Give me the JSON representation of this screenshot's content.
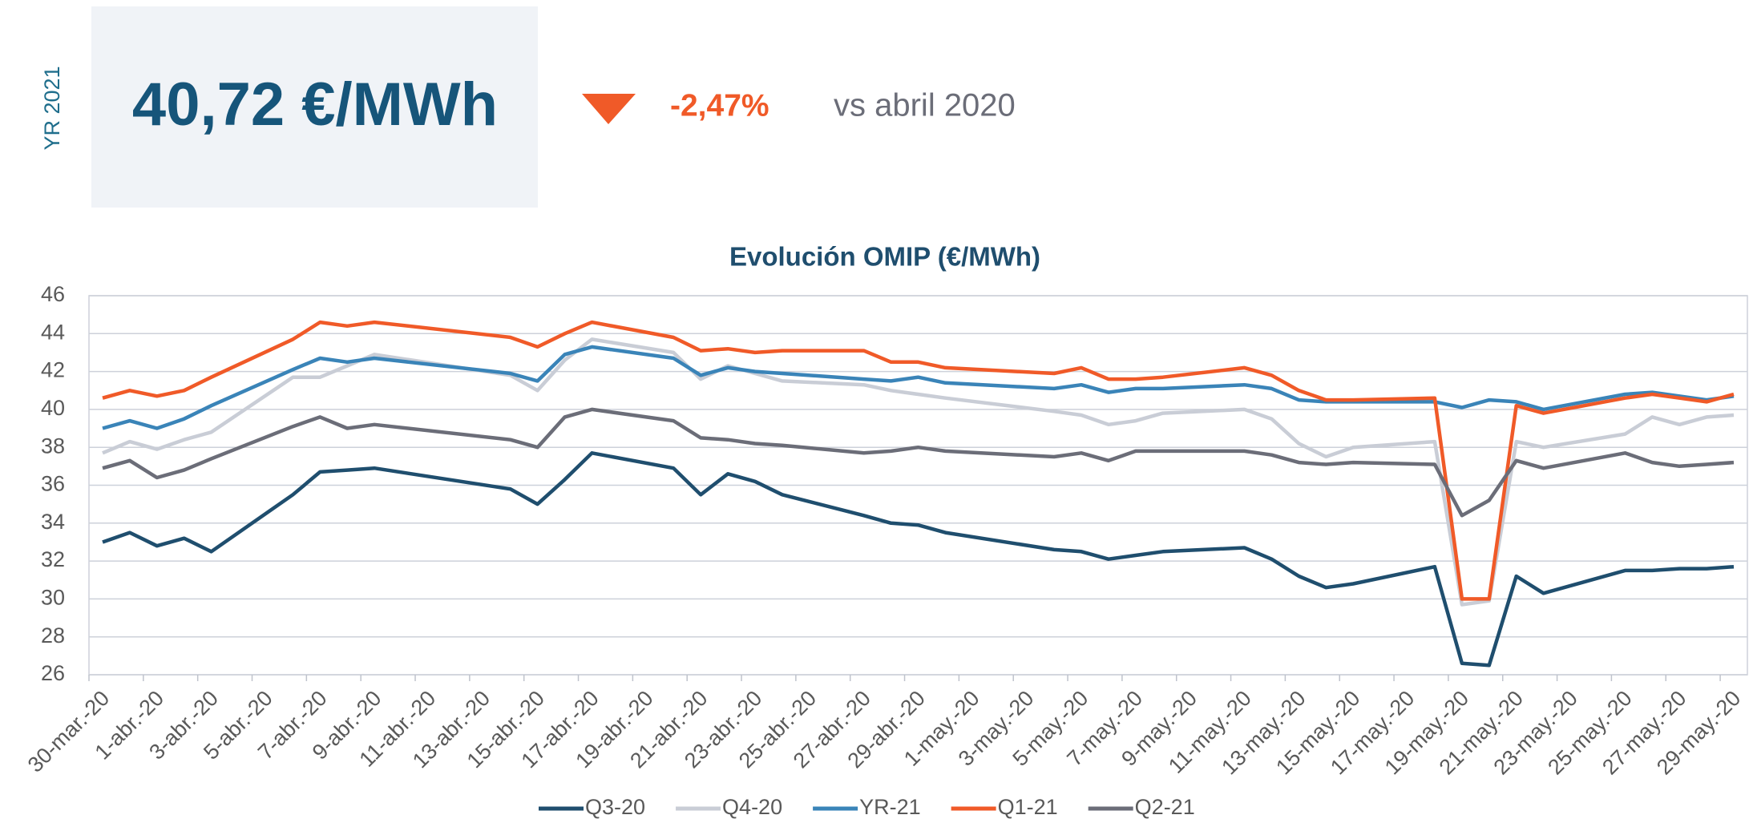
{
  "kpi": {
    "label": "YR 2021",
    "value": "40,72 €/MWh",
    "change": "-2,47%",
    "comparison": "vs abril 2020"
  },
  "chart_data": {
    "type": "line",
    "title": "Evolución OMIP  (€/MWh)",
    "x": [
      "2020-03-30",
      "2020-03-31",
      "2020-04-01",
      "2020-04-02",
      "2020-04-03",
      "2020-04-06",
      "2020-04-07",
      "2020-04-08",
      "2020-04-09",
      "2020-04-14",
      "2020-04-15",
      "2020-04-16",
      "2020-04-17",
      "2020-04-20",
      "2020-04-21",
      "2020-04-22",
      "2020-04-23",
      "2020-04-24",
      "2020-04-27",
      "2020-04-28",
      "2020-04-29",
      "2020-04-30",
      "2020-05-04",
      "2020-05-05",
      "2020-05-06",
      "2020-05-07",
      "2020-05-08",
      "2020-05-11",
      "2020-05-12",
      "2020-05-13",
      "2020-05-14",
      "2020-05-15",
      "2020-05-18",
      "2020-05-19",
      "2020-05-20",
      "2020-05-21",
      "2020-05-22",
      "2020-05-25",
      "2020-05-26",
      "2020-05-27",
      "2020-05-28",
      "2020-05-29"
    ],
    "series": [
      {
        "name": "Q3-20",
        "color": "#1f4e6e",
        "values": [
          33.0,
          33.5,
          32.8,
          33.2,
          32.5,
          35.5,
          36.7,
          36.8,
          36.9,
          35.8,
          35.0,
          36.3,
          37.7,
          36.9,
          35.5,
          36.6,
          36.2,
          35.5,
          34.4,
          34.0,
          33.9,
          33.5,
          32.6,
          32.5,
          32.1,
          32.3,
          32.5,
          32.7,
          32.1,
          31.2,
          30.6,
          30.8,
          31.7,
          26.6,
          26.5,
          31.2,
          30.3,
          31.5,
          31.5,
          31.6,
          31.6,
          31.7
        ]
      },
      {
        "name": "Q4-20",
        "color": "#c9cdd6",
        "values": [
          37.7,
          38.3,
          37.9,
          38.4,
          38.8,
          41.7,
          41.7,
          42.3,
          42.9,
          41.8,
          41.0,
          42.6,
          43.7,
          43.0,
          41.6,
          42.3,
          41.9,
          41.5,
          41.3,
          41.0,
          40.8,
          40.6,
          39.9,
          39.7,
          39.2,
          39.4,
          39.8,
          40.0,
          39.5,
          38.2,
          37.5,
          38.0,
          38.3,
          29.7,
          29.9,
          38.3,
          38.0,
          38.7,
          39.6,
          39.2,
          39.6,
          39.7
        ]
      },
      {
        "name": "YR-21",
        "color": "#3a84b8",
        "values": [
          39.0,
          39.4,
          39.0,
          39.5,
          40.2,
          42.1,
          42.7,
          42.5,
          42.7,
          41.9,
          41.5,
          42.9,
          43.3,
          42.7,
          41.8,
          42.2,
          42.0,
          41.9,
          41.6,
          41.5,
          41.7,
          41.4,
          41.1,
          41.3,
          40.9,
          41.1,
          41.1,
          41.3,
          41.1,
          40.5,
          40.4,
          40.4,
          40.4,
          40.1,
          40.5,
          40.4,
          40.0,
          40.8,
          40.9,
          40.7,
          40.5,
          40.7
        ]
      },
      {
        "name": "Q1-21",
        "color": "#f05a28",
        "values": [
          40.6,
          41.0,
          40.7,
          41.0,
          41.7,
          43.7,
          44.6,
          44.4,
          44.6,
          43.8,
          43.3,
          44.0,
          44.6,
          43.8,
          43.1,
          43.2,
          43.0,
          43.1,
          43.1,
          42.5,
          42.5,
          42.2,
          41.9,
          42.2,
          41.6,
          41.6,
          41.7,
          42.2,
          41.8,
          41.0,
          40.5,
          40.5,
          40.6,
          30.0,
          30.0,
          40.2,
          39.8,
          40.6,
          40.8,
          40.6,
          40.4,
          40.8
        ]
      },
      {
        "name": "Q2-21",
        "color": "#6b6d78",
        "values": [
          36.9,
          37.3,
          36.4,
          36.8,
          37.4,
          39.1,
          39.6,
          39.0,
          39.2,
          38.4,
          38.0,
          39.6,
          40.0,
          39.4,
          38.5,
          38.4,
          38.2,
          38.1,
          37.7,
          37.8,
          38.0,
          37.8,
          37.5,
          37.7,
          37.3,
          37.8,
          37.8,
          37.8,
          37.6,
          37.2,
          37.1,
          37.2,
          37.1,
          34.4,
          35.2,
          37.3,
          36.9,
          37.7,
          37.2,
          37.0,
          37.1,
          37.2
        ]
      }
    ],
    "xlim": [
      "2020-03-30",
      "2020-05-30"
    ],
    "xticks": [
      {
        "value": "2020-03-30",
        "label": "30-mar.-20"
      },
      {
        "value": "2020-04-01",
        "label": "1-abr.-20"
      },
      {
        "value": "2020-04-03",
        "label": "3-abr.-20"
      },
      {
        "value": "2020-04-05",
        "label": "5-abr.-20"
      },
      {
        "value": "2020-04-07",
        "label": "7-abr.-20"
      },
      {
        "value": "2020-04-09",
        "label": "9-abr.-20"
      },
      {
        "value": "2020-04-11",
        "label": "11-abr.-20"
      },
      {
        "value": "2020-04-13",
        "label": "13-abr.-20"
      },
      {
        "value": "2020-04-15",
        "label": "15-abr.-20"
      },
      {
        "value": "2020-04-17",
        "label": "17-abr.-20"
      },
      {
        "value": "2020-04-19",
        "label": "19-abr.-20"
      },
      {
        "value": "2020-04-21",
        "label": "21-abr.-20"
      },
      {
        "value": "2020-04-23",
        "label": "23-abr.-20"
      },
      {
        "value": "2020-04-25",
        "label": "25-abr.-20"
      },
      {
        "value": "2020-04-27",
        "label": "27-abr.-20"
      },
      {
        "value": "2020-04-29",
        "label": "29-abr.-20"
      },
      {
        "value": "2020-05-01",
        "label": "1-may.-20"
      },
      {
        "value": "2020-05-03",
        "label": "3-may.-20"
      },
      {
        "value": "2020-05-05",
        "label": "5-may.-20"
      },
      {
        "value": "2020-05-07",
        "label": "7-may.-20"
      },
      {
        "value": "2020-05-09",
        "label": "9-may.-20"
      },
      {
        "value": "2020-05-11",
        "label": "11-may.-20"
      },
      {
        "value": "2020-05-13",
        "label": "13-may.-20"
      },
      {
        "value": "2020-05-15",
        "label": "15-may.-20"
      },
      {
        "value": "2020-05-17",
        "label": "17-may.-20"
      },
      {
        "value": "2020-05-19",
        "label": "19-may.-20"
      },
      {
        "value": "2020-05-21",
        "label": "21-may.-20"
      },
      {
        "value": "2020-05-23",
        "label": "23-may.-20"
      },
      {
        "value": "2020-05-25",
        "label": "25-may.-20"
      },
      {
        "value": "2020-05-27",
        "label": "27-may.-20"
      },
      {
        "value": "2020-05-29",
        "label": "29-may.-20"
      }
    ],
    "ylim": [
      26,
      46
    ],
    "yticks": [
      26,
      28,
      30,
      32,
      34,
      36,
      38,
      40,
      42,
      44,
      46
    ],
    "grid": true,
    "legend": "bottom"
  }
}
